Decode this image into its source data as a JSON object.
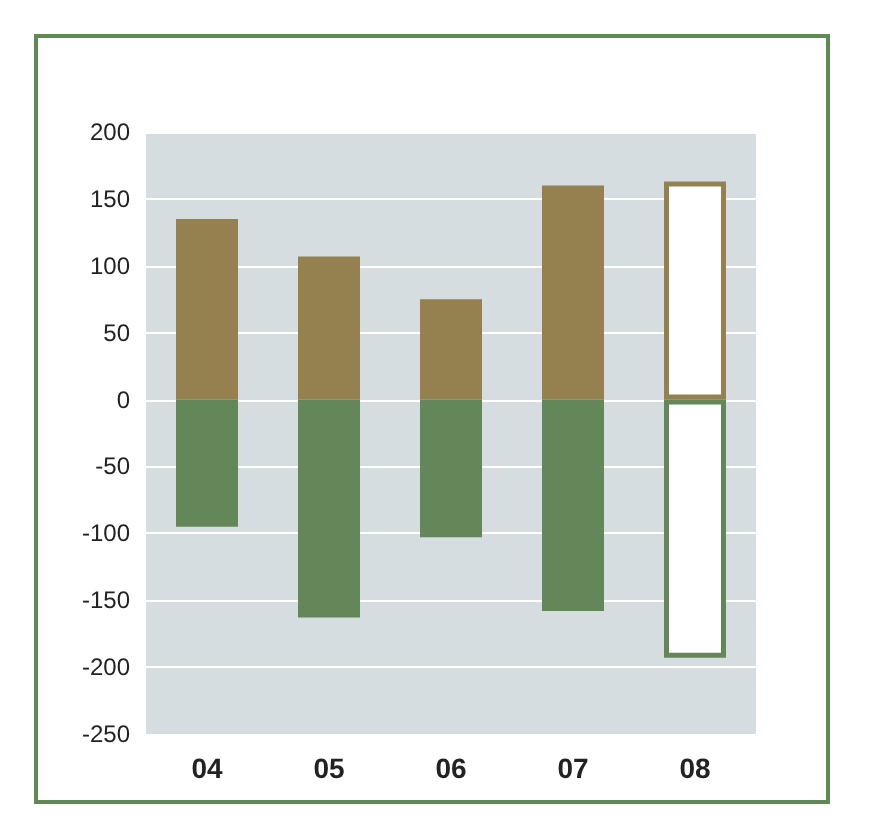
{
  "chart_data": {
    "type": "bar",
    "categories": [
      "04",
      "05",
      "06",
      "07",
      "08"
    ],
    "stacked": true,
    "series": [
      {
        "color": "#958050",
        "colors": [
          "#958050",
          "#958050",
          "#958050",
          "#958050",
          "#ffffff"
        ],
        "values": [
          135,
          107,
          75,
          160,
          163
        ]
      },
      {
        "color": "#64875a",
        "colors": [
          "#64875a",
          "#64875a",
          "#64875a",
          "#64875a",
          "#ffffff"
        ],
        "values": [
          -95,
          -163,
          -103,
          -158,
          -193
        ]
      }
    ],
    "ylim": [
      -250,
      200
    ],
    "yticks": [
      -250,
      -200,
      -150,
      -100,
      -50,
      0,
      50,
      100,
      150,
      200
    ],
    "grid": "y"
  }
}
